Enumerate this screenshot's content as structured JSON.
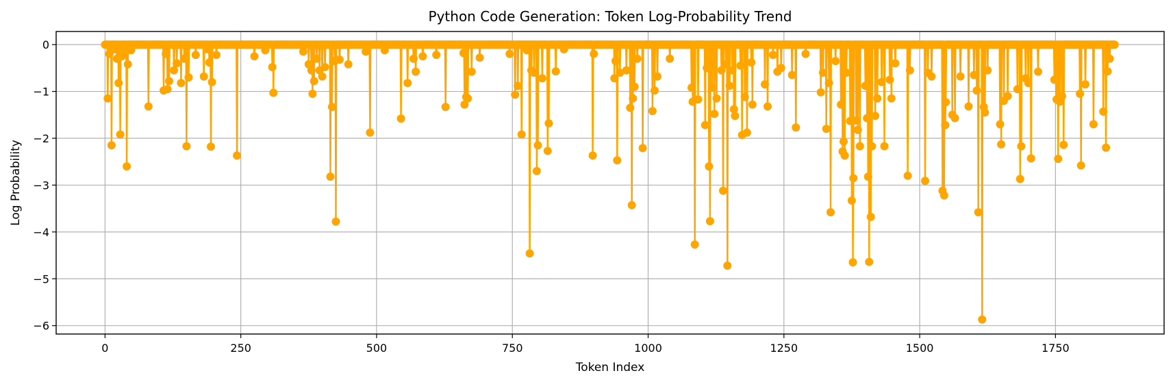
{
  "chart_data": {
    "type": "line",
    "title": "Python Code Generation: Token Log-Probability Trend",
    "xlabel": "Token Index",
    "ylabel": "Log Probability",
    "xlim": [
      -90,
      1950
    ],
    "ylim": [
      -6.18,
      0.28
    ],
    "xticks": [
      0,
      250,
      500,
      750,
      1000,
      1250,
      1500,
      1750
    ],
    "yticks": [
      0,
      -1,
      -2,
      -3,
      -4,
      -5,
      -6
    ],
    "ytick_labels": [
      "0",
      "−1",
      "−2",
      "−3",
      "−4",
      "−5",
      "−6"
    ],
    "grid": true,
    "color": "#ffa500",
    "marker": "circle",
    "token_count": 1860,
    "dips": [
      [
        5,
        -1.15
      ],
      [
        8,
        -0.2
      ],
      [
        12,
        -2.15
      ],
      [
        18,
        -0.1
      ],
      [
        22,
        -0.3
      ],
      [
        25,
        -0.82
      ],
      [
        28,
        -1.92
      ],
      [
        31,
        -0.25
      ],
      [
        35,
        -0.15
      ],
      [
        40,
        -2.6
      ],
      [
        42,
        -0.42
      ],
      [
        48,
        -0.12
      ],
      [
        80,
        -1.32
      ],
      [
        108,
        -0.98
      ],
      [
        112,
        -0.2
      ],
      [
        115,
        -0.95
      ],
      [
        118,
        -0.78
      ],
      [
        127,
        -0.55
      ],
      [
        132,
        -0.4
      ],
      [
        140,
        -0.82
      ],
      [
        146,
        -0.3
      ],
      [
        150,
        -2.17
      ],
      [
        154,
        -0.7
      ],
      [
        167,
        -0.22
      ],
      [
        182,
        -0.68
      ],
      [
        188,
        -0.1
      ],
      [
        192,
        -0.38
      ],
      [
        195,
        -2.18
      ],
      [
        197,
        -0.8
      ],
      [
        205,
        -0.22
      ],
      [
        243,
        -2.37
      ],
      [
        275,
        -0.25
      ],
      [
        295,
        -0.12
      ],
      [
        308,
        -0.48
      ],
      [
        310,
        -1.03
      ],
      [
        365,
        -0.15
      ],
      [
        375,
        -0.42
      ],
      [
        380,
        -0.55
      ],
      [
        382,
        -1.05
      ],
      [
        385,
        -0.78
      ],
      [
        390,
        -0.3
      ],
      [
        395,
        -0.55
      ],
      [
        400,
        -0.68
      ],
      [
        405,
        -0.48
      ],
      [
        415,
        -2.82
      ],
      [
        418,
        -1.33
      ],
      [
        423,
        -0.35
      ],
      [
        425,
        -3.78
      ],
      [
        432,
        -0.32
      ],
      [
        448,
        -0.42
      ],
      [
        480,
        -0.15
      ],
      [
        488,
        -1.88
      ],
      [
        515,
        -0.12
      ],
      [
        545,
        -1.58
      ],
      [
        557,
        -0.82
      ],
      [
        568,
        -0.3
      ],
      [
        572,
        -0.58
      ],
      [
        585,
        -0.25
      ],
      [
        610,
        -0.22
      ],
      [
        627,
        -1.33
      ],
      [
        660,
        -0.18
      ],
      [
        662,
        -1.28
      ],
      [
        665,
        -1.12
      ],
      [
        668,
        -1.15
      ],
      [
        675,
        -0.58
      ],
      [
        690,
        -0.28
      ],
      [
        745,
        -0.2
      ],
      [
        755,
        -1.07
      ],
      [
        760,
        -0.88
      ],
      [
        767,
        -1.92
      ],
      [
        777,
        -0.12
      ],
      [
        782,
        -4.46
      ],
      [
        785,
        -0.55
      ],
      [
        790,
        -0.6
      ],
      [
        795,
        -2.7
      ],
      [
        797,
        -2.15
      ],
      [
        805,
        -0.72
      ],
      [
        815,
        -2.27
      ],
      [
        817,
        -1.68
      ],
      [
        830,
        -0.57
      ],
      [
        845,
        -0.1
      ],
      [
        898,
        -2.37
      ],
      [
        900,
        -0.2
      ],
      [
        938,
        -0.72
      ],
      [
        940,
        -0.35
      ],
      [
        943,
        -2.47
      ],
      [
        948,
        -0.6
      ],
      [
        960,
        -0.55
      ],
      [
        967,
        -1.35
      ],
      [
        970,
        -3.43
      ],
      [
        972,
        -1.15
      ],
      [
        975,
        -0.9
      ],
      [
        980,
        -0.3
      ],
      [
        990,
        -2.21
      ],
      [
        1008,
        -1.42
      ],
      [
        1012,
        -0.98
      ],
      [
        1017,
        -0.68
      ],
      [
        1040,
        -0.3
      ],
      [
        1080,
        -0.92
      ],
      [
        1082,
        -1.22
      ],
      [
        1086,
        -4.27
      ],
      [
        1092,
        -1.17
      ],
      [
        1105,
        -1.72
      ],
      [
        1108,
        -0.5
      ],
      [
        1112,
        -2.6
      ],
      [
        1114,
        -3.77
      ],
      [
        1118,
        -0.92
      ],
      [
        1122,
        -1.48
      ],
      [
        1126,
        -1.15
      ],
      [
        1135,
        -0.55
      ],
      [
        1138,
        -3.12
      ],
      [
        1143,
        -0.42
      ],
      [
        1146,
        -4.72
      ],
      [
        1150,
        -0.88
      ],
      [
        1155,
        -0.55
      ],
      [
        1158,
        -1.38
      ],
      [
        1160,
        -1.52
      ],
      [
        1170,
        -0.45
      ],
      [
        1173,
        -1.93
      ],
      [
        1178,
        -1.12
      ],
      [
        1182,
        -1.88
      ],
      [
        1190,
        -0.38
      ],
      [
        1192,
        -1.28
      ],
      [
        1215,
        -0.85
      ],
      [
        1220,
        -1.32
      ],
      [
        1230,
        -0.22
      ],
      [
        1238,
        -0.58
      ],
      [
        1245,
        -0.5
      ],
      [
        1265,
        -0.65
      ],
      [
        1272,
        -1.77
      ],
      [
        1290,
        -0.2
      ],
      [
        1318,
        -1.02
      ],
      [
        1322,
        -0.6
      ],
      [
        1328,
        -1.8
      ],
      [
        1333,
        -0.82
      ],
      [
        1336,
        -3.58
      ],
      [
        1345,
        -0.35
      ],
      [
        1355,
        -1.28
      ],
      [
        1358,
        -2.28
      ],
      [
        1360,
        -2.07
      ],
      [
        1362,
        -2.37
      ],
      [
        1365,
        -0.6
      ],
      [
        1372,
        -1.63
      ],
      [
        1375,
        -3.33
      ],
      [
        1377,
        -4.65
      ],
      [
        1378,
        -2.85
      ],
      [
        1383,
        -1.62
      ],
      [
        1386,
        -1.82
      ],
      [
        1390,
        -2.17
      ],
      [
        1400,
        -0.88
      ],
      [
        1403,
        -1.57
      ],
      [
        1405,
        -2.82
      ],
      [
        1407,
        -4.64
      ],
      [
        1410,
        -3.68
      ],
      [
        1412,
        -2.17
      ],
      [
        1418,
        -1.52
      ],
      [
        1422,
        -1.15
      ],
      [
        1430,
        -0.8
      ],
      [
        1435,
        -2.17
      ],
      [
        1445,
        -0.75
      ],
      [
        1448,
        -1.15
      ],
      [
        1455,
        -0.4
      ],
      [
        1478,
        -2.8
      ],
      [
        1482,
        -0.55
      ],
      [
        1510,
        -2.91
      ],
      [
        1515,
        -0.6
      ],
      [
        1522,
        -0.68
      ],
      [
        1542,
        -3.12
      ],
      [
        1545,
        -3.22
      ],
      [
        1547,
        -1.72
      ],
      [
        1548,
        -1.23
      ],
      [
        1560,
        -1.5
      ],
      [
        1565,
        -1.57
      ],
      [
        1575,
        -0.68
      ],
      [
        1590,
        -1.32
      ],
      [
        1600,
        -0.65
      ],
      [
        1605,
        -0.98
      ],
      [
        1608,
        -3.58
      ],
      [
        1615,
        -5.87
      ],
      [
        1618,
        -1.33
      ],
      [
        1620,
        -1.45
      ],
      [
        1625,
        -0.55
      ],
      [
        1648,
        -1.7
      ],
      [
        1650,
        -2.13
      ],
      [
        1655,
        -1.2
      ],
      [
        1662,
        -1.1
      ],
      [
        1680,
        -0.95
      ],
      [
        1685,
        -2.87
      ],
      [
        1687,
        -2.17
      ],
      [
        1695,
        -0.72
      ],
      [
        1700,
        -0.82
      ],
      [
        1705,
        -2.43
      ],
      [
        1718,
        -0.58
      ],
      [
        1748,
        -0.75
      ],
      [
        1752,
        -1.17
      ],
      [
        1755,
        -2.44
      ],
      [
        1758,
        -1.22
      ],
      [
        1762,
        -1.1
      ],
      [
        1765,
        -2.14
      ],
      [
        1795,
        -1.05
      ],
      [
        1797,
        -2.58
      ],
      [
        1805,
        -0.85
      ],
      [
        1820,
        -1.7
      ],
      [
        1838,
        -1.43
      ],
      [
        1843,
        -2.2
      ],
      [
        1846,
        -0.57
      ],
      [
        1850,
        -0.3
      ]
    ]
  }
}
